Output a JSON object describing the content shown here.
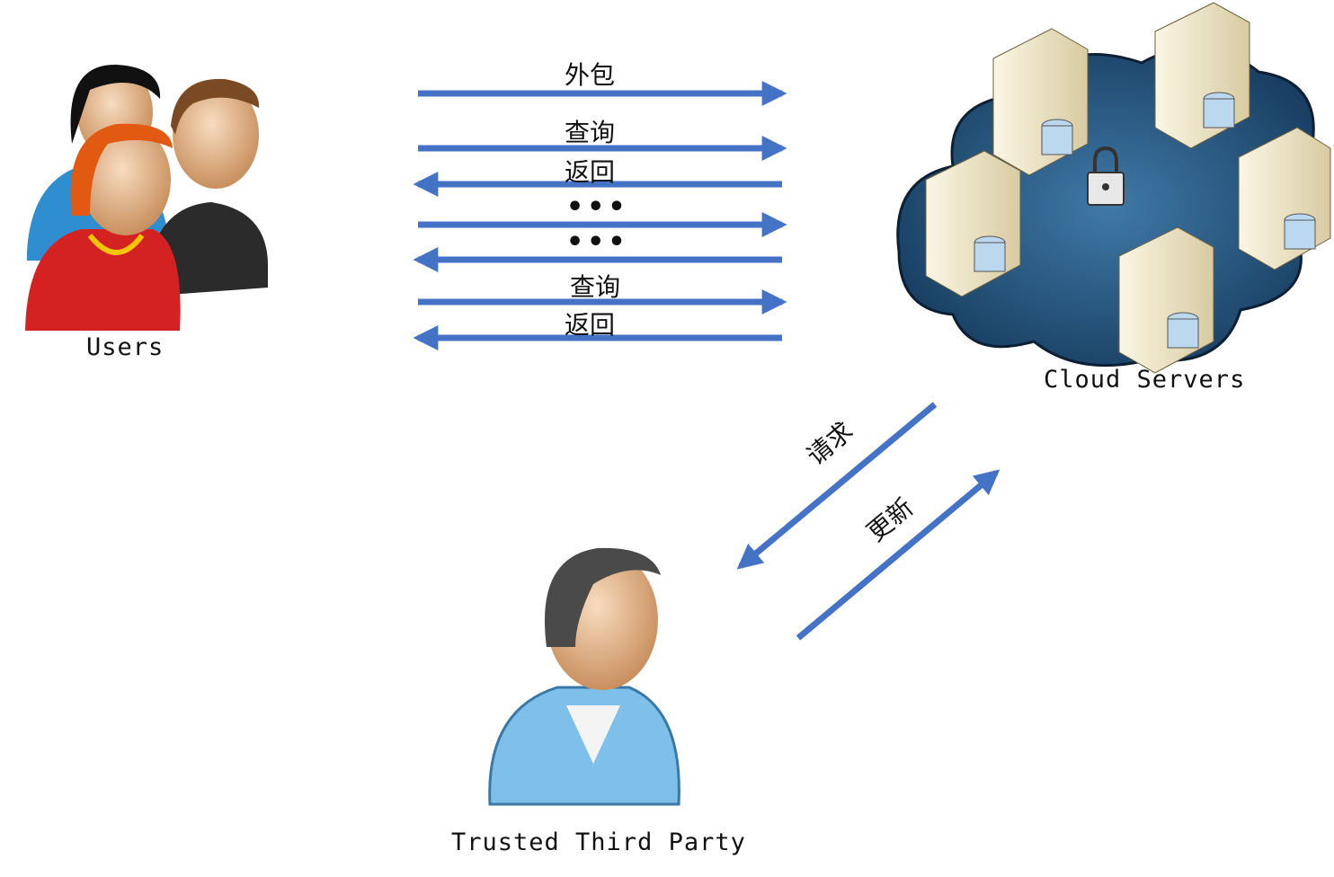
{
  "nodes": {
    "users": {
      "label": "Users"
    },
    "cloud": {
      "label": "Cloud Servers"
    },
    "ttp": {
      "label": "Trusted Third Party"
    }
  },
  "messages": [
    {
      "label": "外包",
      "direction": "right"
    },
    {
      "label": "查询",
      "direction": "right"
    },
    {
      "label": "返回",
      "direction": "left"
    },
    {
      "label": "•••",
      "direction": "right"
    },
    {
      "label": "•••",
      "direction": "left"
    },
    {
      "label": "查询",
      "direction": "right"
    },
    {
      "label": "返回",
      "direction": "left"
    }
  ],
  "ttp_links": [
    {
      "label": "请求",
      "direction": "to-ttp"
    },
    {
      "label": "更新",
      "direction": "to-cloud"
    }
  ],
  "colors": {
    "arrow": "#4472C4",
    "cloud": "#1f4e79",
    "server": "#efe6c8"
  }
}
